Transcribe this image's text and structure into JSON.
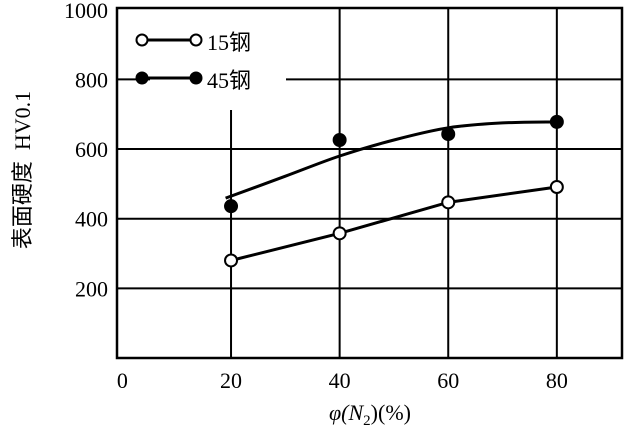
{
  "chart_data": {
    "type": "line",
    "title": "",
    "xlabel": "φ(N2)(%)",
    "xlabel_parts": {
      "prefix": "φ(N",
      "sub": "2",
      "suffix": ")(%)"
    },
    "ylabel": "表面硬度  HV0.1",
    "xlim": [
      -1,
      92
    ],
    "ylim": [
      0,
      1005
    ],
    "xticks": [
      0,
      20,
      40,
      60,
      80
    ],
    "yticks": [
      200,
      400,
      600,
      800,
      1000
    ],
    "grid": true,
    "legend_position": "top-left",
    "series": [
      {
        "name": "15钢",
        "marker": "open-circle",
        "x": [
          20,
          40,
          60,
          80
        ],
        "y": [
          280,
          358,
          447,
          491
        ],
        "line": {
          "x": [
            20,
            40,
            60,
            80
          ],
          "y": [
            280,
            358,
            447,
            491
          ]
        }
      },
      {
        "name": "45钢",
        "marker": "filled-circle",
        "x": [
          20,
          40,
          60,
          80
        ],
        "y": [
          436,
          626,
          643,
          678
        ],
        "line": {
          "x": [
            19,
            30,
            40,
            50,
            60,
            70,
            80
          ],
          "y": [
            459,
            522,
            580,
            626,
            661,
            675,
            678
          ]
        }
      }
    ],
    "color": "#000000"
  }
}
